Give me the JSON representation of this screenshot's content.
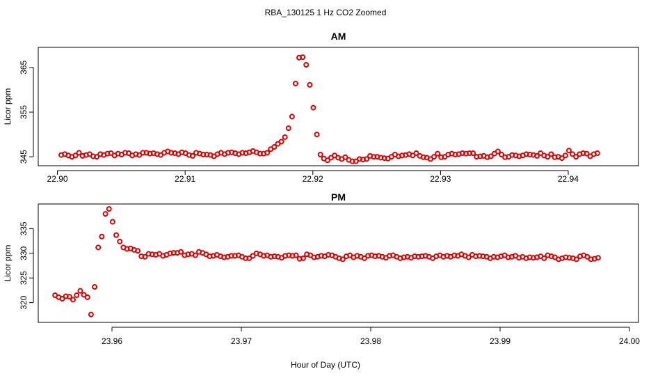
{
  "title": "RBA_130125  1 Hz CO2 Zoomed",
  "colors": {
    "points": "#dd0000",
    "frame": "#000000"
  },
  "chart_data": [
    {
      "type": "scatter",
      "title": "AM",
      "xlabel": "",
      "ylabel": "Licor ppm",
      "xlim": [
        22.8985,
        22.9455
      ],
      "ylim": [
        343.0,
        369.5
      ],
      "xticks": [
        22.9,
        22.91,
        22.92,
        22.93,
        22.94
      ],
      "xtick_labels": [
        "22.90",
        "22.91",
        "22.92",
        "22.93",
        "22.94"
      ],
      "yticks": [
        345,
        355,
        365
      ],
      "ytick_labels": [
        "345",
        "355",
        "365"
      ],
      "grid": false,
      "legend": "none",
      "series": [
        {
          "x_start": 22.9003,
          "x_step": 0.000278,
          "values": [
            345.4,
            345.6,
            345.3,
            345.0,
            345.3,
            345.9,
            345.2,
            345.4,
            345.6,
            345.1,
            345.0,
            345.6,
            345.4,
            345.7,
            345.8,
            345.3,
            345.7,
            345.5,
            345.9,
            345.8,
            345.3,
            345.6,
            345.4,
            345.9,
            345.9,
            345.7,
            345.8,
            345.6,
            345.4,
            345.9,
            346.2,
            345.9,
            345.8,
            345.6,
            346.0,
            345.8,
            345.4,
            345.2,
            345.9,
            345.7,
            345.5,
            345.5,
            345.4,
            345.1,
            345.6,
            345.9,
            345.6,
            345.9,
            346.0,
            345.8,
            345.6,
            345.9,
            345.8,
            346.0,
            346.3,
            346.0,
            345.7,
            345.7,
            345.9,
            346.7,
            347.2,
            347.9,
            348.4,
            349.4,
            351.4,
            354.0,
            361.4,
            367.2,
            367.3,
            365.6,
            361.1,
            356.0,
            350.0,
            345.5,
            344.6,
            344.2,
            344.8,
            345.3,
            344.8,
            344.5,
            344.9,
            344.3,
            344.0,
            344.0,
            344.5,
            344.4,
            344.5,
            345.2,
            345.0,
            345.0,
            344.8,
            344.7,
            344.6,
            345.0,
            345.5,
            345.1,
            345.3,
            345.4,
            345.6,
            345.3,
            345.8,
            345.2,
            344.9,
            344.8,
            344.5,
            345.0,
            345.7,
            344.9,
            345.0,
            345.5,
            345.7,
            345.5,
            345.6,
            345.8,
            345.7,
            345.8,
            345.8,
            345.0,
            345.1,
            345.2,
            344.9,
            345.1,
            345.7,
            346.2,
            345.5,
            344.9,
            345.0,
            345.4,
            345.3,
            345.1,
            345.3,
            345.6,
            345.5,
            345.4,
            345.2,
            345.8,
            345.3,
            345.0,
            345.6,
            344.9,
            345.0,
            344.7,
            345.3,
            346.4,
            345.6,
            345.0,
            345.6,
            345.8,
            345.7,
            345.1,
            345.6,
            345.8
          ]
        }
      ]
    },
    {
      "type": "scatter",
      "title": "PM",
      "xlabel": "Hour of Day (UTC)",
      "ylabel": "Licor ppm",
      "xlim": [
        23.9543,
        24.0007
      ],
      "ylim": [
        316.0,
        340.0
      ],
      "xticks": [
        23.96,
        23.97,
        23.98,
        23.99,
        24.0
      ],
      "xtick_labels": [
        "23.96",
        "23.97",
        "23.98",
        "23.99",
        "24.00"
      ],
      "yticks": [
        320,
        325,
        330,
        335
      ],
      "ytick_labels": [
        "320",
        "325",
        "330",
        "335"
      ],
      "grid": false,
      "legend": "none",
      "series": [
        {
          "x_start": 23.9556,
          "x_step": 0.000278,
          "values": [
            321.5,
            321.1,
            320.8,
            321.3,
            321.2,
            320.6,
            321.5,
            322.4,
            321.6,
            321.1,
            317.6,
            323.2,
            331.2,
            333.4,
            338.0,
            339.0,
            336.4,
            333.7,
            332.4,
            331.2,
            330.9,
            331.0,
            330.7,
            330.5,
            329.4,
            329.3,
            329.9,
            329.8,
            329.7,
            329.9,
            329.5,
            329.7,
            330.0,
            330.1,
            330.1,
            330.3,
            329.6,
            329.8,
            329.9,
            329.6,
            330.3,
            330.1,
            329.8,
            329.4,
            329.5,
            329.7,
            329.4,
            329.2,
            329.3,
            329.5,
            329.5,
            329.6,
            329.3,
            329.0,
            329.0,
            329.5,
            330.0,
            329.8,
            329.5,
            329.6,
            329.3,
            329.4,
            329.3,
            329.1,
            329.5,
            329.6,
            329.5,
            329.6,
            328.9,
            329.0,
            329.8,
            329.6,
            329.2,
            329.3,
            329.5,
            329.4,
            329.7,
            329.6,
            329.3,
            329.0,
            328.8,
            329.4,
            329.6,
            329.2,
            329.5,
            329.3,
            329.0,
            329.5,
            329.6,
            329.4,
            329.5,
            329.3,
            329.1,
            329.5,
            329.6,
            329.3,
            329.0,
            329.2,
            329.3,
            329.1,
            329.4,
            329.3,
            329.4,
            329.5,
            329.3,
            329.0,
            329.4,
            329.6,
            329.3,
            329.5,
            329.3,
            329.6,
            329.5,
            329.8,
            329.5,
            329.2,
            329.7,
            329.4,
            329.5,
            329.4,
            329.3,
            329.0,
            329.3,
            329.2,
            329.4,
            329.6,
            329.2,
            329.3,
            329.5,
            329.1,
            329.3,
            329.0,
            329.2,
            329.1,
            329.2,
            329.4,
            329.0,
            329.6,
            329.4,
            329.2,
            328.8,
            329.0,
            329.2,
            329.1,
            329.0,
            328.8,
            329.4,
            329.6,
            329.3,
            328.8,
            328.9,
            329.1
          ]
        }
      ]
    }
  ]
}
